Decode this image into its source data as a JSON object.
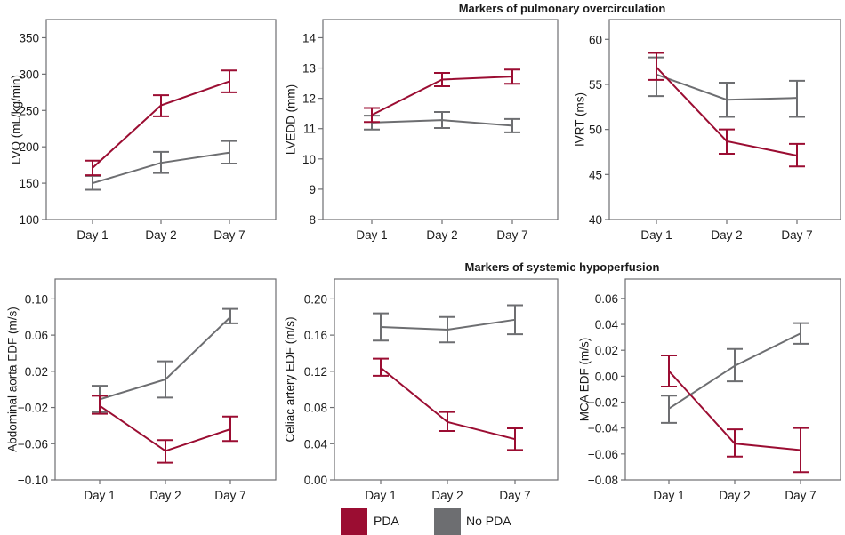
{
  "section_titles": {
    "top": "Markers of pulmonary overcirculation",
    "bottom": "Markers of systemic hypoperfusion"
  },
  "legend": {
    "items": [
      {
        "label": "PDA",
        "color": "#9b0d32"
      },
      {
        "label": "No PDA",
        "color": "#6d6e71"
      }
    ]
  },
  "chart_data": [
    {
      "type": "line",
      "title": "",
      "xlabel": "",
      "ylabel": "LVO (mL/kg/min)",
      "categories": [
        "Day 1",
        "Day 2",
        "Day 7"
      ],
      "ylim": [
        100,
        375
      ],
      "yticks": [
        100,
        150,
        200,
        250,
        300,
        350
      ],
      "ytick_labels": [
        "100",
        "150",
        "200",
        "250",
        "300",
        "350"
      ],
      "series": [
        {
          "name": "PDA",
          "color": "#9b0d32",
          "values": [
            171,
            257,
            290
          ],
          "err_low": [
            161,
            242,
            275
          ],
          "err_high": [
            181,
            271,
            305
          ]
        },
        {
          "name": "No PDA",
          "color": "#6d6e71",
          "values": [
            150,
            178,
            192
          ],
          "err_low": [
            141,
            164,
            177
          ],
          "err_high": [
            160,
            193,
            208
          ]
        }
      ]
    },
    {
      "type": "line",
      "title": "",
      "xlabel": "",
      "ylabel": "LVEDD (mm)",
      "categories": [
        "Day 1",
        "Day 2",
        "Day 7"
      ],
      "ylim": [
        8,
        14.6
      ],
      "yticks": [
        8,
        9,
        10,
        11,
        12,
        13,
        14
      ],
      "ytick_labels": [
        "8",
        "9",
        "10",
        "11",
        "12",
        "13",
        "14"
      ],
      "series": [
        {
          "name": "PDA",
          "color": "#9b0d32",
          "values": [
            11.45,
            12.62,
            12.72
          ],
          "err_low": [
            11.22,
            12.4,
            12.48
          ],
          "err_high": [
            11.68,
            12.84,
            12.95
          ]
        },
        {
          "name": "No PDA",
          "color": "#6d6e71",
          "values": [
            11.2,
            11.28,
            11.1
          ],
          "err_low": [
            10.97,
            11.02,
            10.88
          ],
          "err_high": [
            11.43,
            11.55,
            11.32
          ]
        }
      ]
    },
    {
      "type": "line",
      "title": "",
      "xlabel": "",
      "ylabel": "IVRT (ms)",
      "categories": [
        "Day 1",
        "Day 2",
        "Day 7"
      ],
      "ylim": [
        40,
        62.2
      ],
      "yticks": [
        40,
        45,
        50,
        55,
        60
      ],
      "ytick_labels": [
        "40",
        "45",
        "50",
        "55",
        "60"
      ],
      "series": [
        {
          "name": "PDA",
          "color": "#9b0d32",
          "values": [
            56.9,
            48.7,
            47.1
          ],
          "err_low": [
            55.5,
            47.3,
            45.9
          ],
          "err_high": [
            58.5,
            50.0,
            48.4
          ]
        },
        {
          "name": "No PDA",
          "color": "#6d6e71",
          "values": [
            56.1,
            53.3,
            53.5
          ],
          "err_low": [
            53.7,
            51.4,
            51.4
          ],
          "err_high": [
            58.0,
            55.2,
            55.4
          ]
        }
      ]
    },
    {
      "type": "line",
      "title": "",
      "xlabel": "",
      "ylabel": "Abdominal aorta EDF (m/s)",
      "categories": [
        "Day 1",
        "Day 2",
        "Day 7"
      ],
      "ylim": [
        -0.1,
        0.122
      ],
      "yticks": [
        -0.1,
        -0.06,
        -0.02,
        0.02,
        0.06,
        0.1
      ],
      "ytick_labels": [
        "−0.10",
        "−0.06",
        "−0.02",
        "0.02",
        "0.06",
        "0.10"
      ],
      "series": [
        {
          "name": "PDA",
          "color": "#9b0d32",
          "values": [
            -0.018,
            -0.068,
            -0.044
          ],
          "err_low": [
            -0.027,
            -0.081,
            -0.057
          ],
          "err_high": [
            -0.007,
            -0.056,
            -0.03
          ]
        },
        {
          "name": "No PDA",
          "color": "#6d6e71",
          "values": [
            -0.011,
            0.011,
            0.08
          ],
          "err_low": [
            -0.025,
            -0.009,
            0.073
          ],
          "err_high": [
            0.004,
            0.031,
            0.089
          ]
        }
      ]
    },
    {
      "type": "line",
      "title": "",
      "xlabel": "",
      "ylabel": "Celiac artery EDF (m/s)",
      "categories": [
        "Day 1",
        "Day 2",
        "Day 7"
      ],
      "ylim": [
        0,
        0.222
      ],
      "yticks": [
        0,
        0.04,
        0.08,
        0.12,
        0.16,
        0.2
      ],
      "ytick_labels": [
        "0.00",
        "0.04",
        "0.08",
        "0.12",
        "0.16",
        "0.20"
      ],
      "series": [
        {
          "name": "PDA",
          "color": "#9b0d32",
          "values": [
            0.124,
            0.064,
            0.045
          ],
          "err_low": [
            0.115,
            0.054,
            0.033
          ],
          "err_high": [
            0.134,
            0.075,
            0.057
          ]
        },
        {
          "name": "No PDA",
          "color": "#6d6e71",
          "values": [
            0.169,
            0.166,
            0.177
          ],
          "err_low": [
            0.154,
            0.152,
            0.161
          ],
          "err_high": [
            0.184,
            0.18,
            0.193
          ]
        }
      ]
    },
    {
      "type": "line",
      "title": "",
      "xlabel": "",
      "ylabel": "MCA EDF (m/s)",
      "categories": [
        "Day 1",
        "Day 2",
        "Day 7"
      ],
      "ylim": [
        -0.08,
        0.075
      ],
      "yticks": [
        -0.08,
        -0.06,
        -0.04,
        -0.02,
        0.0,
        0.02,
        0.04,
        0.06
      ],
      "ytick_labels": [
        "−0.08",
        "−0.06",
        "−0.04",
        "−0.02",
        "0.00",
        "0.02",
        "0.04",
        "0.06"
      ],
      "series": [
        {
          "name": "PDA",
          "color": "#9b0d32",
          "values": [
            0.004,
            -0.052,
            -0.057
          ],
          "err_low": [
            -0.008,
            -0.062,
            -0.074
          ],
          "err_high": [
            0.016,
            -0.041,
            -0.04
          ]
        },
        {
          "name": "No PDA",
          "color": "#6d6e71",
          "values": [
            -0.025,
            0.008,
            0.033
          ],
          "err_low": [
            -0.036,
            -0.004,
            0.025
          ],
          "err_high": [
            -0.015,
            0.021,
            0.041
          ]
        }
      ]
    }
  ]
}
